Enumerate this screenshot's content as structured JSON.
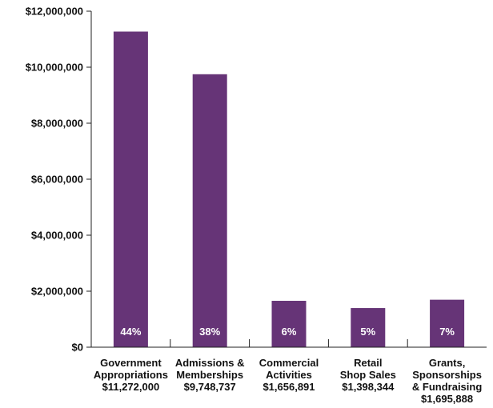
{
  "chart_data": {
    "type": "bar",
    "categories": [
      [
        "Government",
        "Appropriations",
        "$11,272,000"
      ],
      [
        "Admissions &",
        "Memberships",
        "$9,748,737"
      ],
      [
        "Commercial",
        "Activities",
        "$1,656,891"
      ],
      [
        "Retail",
        "Shop Sales",
        "$1,398,344"
      ],
      [
        "Grants,",
        "Sponsorships",
        "& Fundraising",
        "$1,695,888"
      ]
    ],
    "values": [
      11272000,
      9748737,
      1656891,
      1398344,
      1695888
    ],
    "percent_labels": [
      "44%",
      "38%",
      "6%",
      "5%",
      "7%"
    ],
    "yticks": [
      "$0",
      "$2,000,000",
      "$4,000,000",
      "$6,000,000",
      "$8,000,000",
      "$10,000,000",
      "$12,000,000"
    ],
    "ylim": [
      0,
      12000000
    ],
    "grid": false,
    "bar_color": "#663477"
  }
}
